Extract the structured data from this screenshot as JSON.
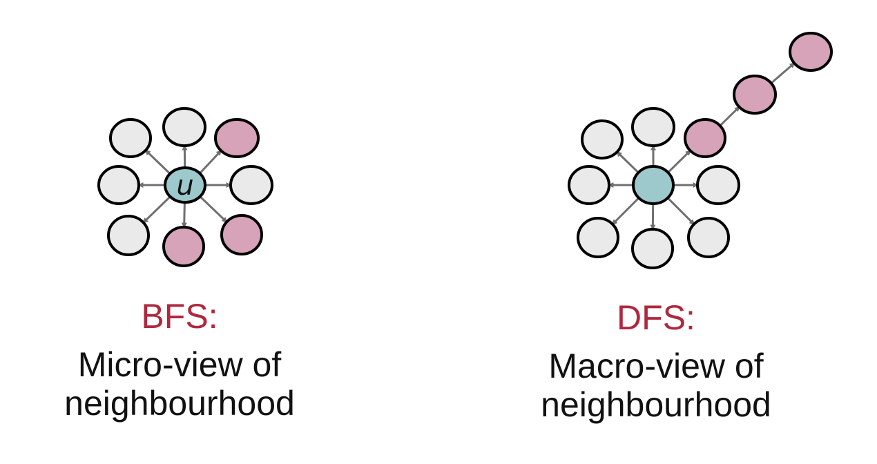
{
  "colors": {
    "accent_text": "#b0283d",
    "node_plain": "#eaeaea",
    "node_pink": "#d6a3b9",
    "node_center": "#9ec9cc",
    "stroke": "#000000",
    "arrow": "#6f6f6f"
  },
  "bfs": {
    "title": "BFS:",
    "line1": "Micro-view of",
    "line2": "neighbourhood",
    "center_label": "u"
  },
  "dfs": {
    "title": "DFS:",
    "line1": "Macro-view of",
    "line2": "neighbourhood"
  }
}
